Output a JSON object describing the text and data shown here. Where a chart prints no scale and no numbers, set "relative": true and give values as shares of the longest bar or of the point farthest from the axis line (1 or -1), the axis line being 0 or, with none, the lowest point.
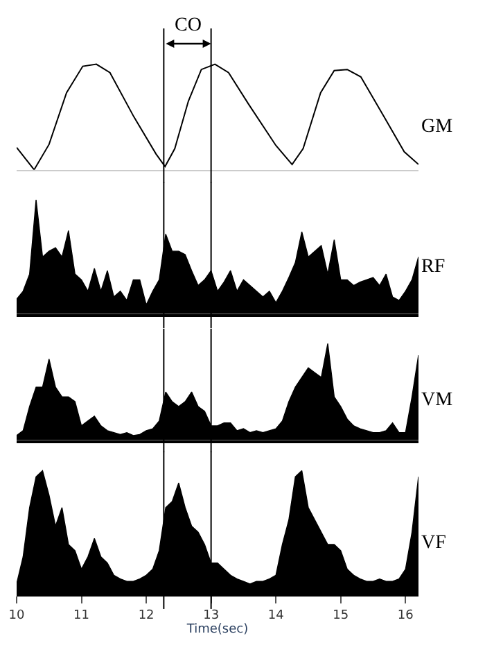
{
  "chart_data": [
    {
      "type": "line",
      "relative": true,
      "xlim": [
        10,
        16.2
      ],
      "tick_labels": false,
      "annotations": [
        "CO"
      ],
      "x": [
        10.0,
        10.27,
        10.5,
        10.77,
        11.02,
        11.23,
        11.44,
        11.81,
        12.15,
        12.29,
        12.44,
        12.65,
        12.85,
        13.06,
        13.27,
        13.58,
        14.0,
        14.25,
        14.42,
        14.69,
        14.9,
        15.1,
        15.31,
        15.67,
        15.98,
        16.2
      ],
      "series": [
        {
          "name": "GM",
          "color": "#000000",
          "values": [
            0.21,
            0,
            0.24,
            0.73,
            0.98,
            1.0,
            0.92,
            0.5,
            0.15,
            0.03,
            0.2,
            0.65,
            0.95,
            1.0,
            0.92,
            0.62,
            0.23,
            0.05,
            0.2,
            0.73,
            0.94,
            0.95,
            0.88,
            0.5,
            0.17,
            0.05
          ]
        }
      ],
      "ref_lines": [
        {
          "axis": "x",
          "value": 12.27,
          "color": "#000000"
        },
        {
          "axis": "x",
          "value": 13.0,
          "color": "#000000"
        }
      ]
    },
    {
      "type": "area",
      "relative": true,
      "xlim": [
        10,
        16.2
      ],
      "tick_labels": false,
      "x": [
        10.0,
        10.1,
        10.2,
        10.3,
        10.4,
        10.5,
        10.6,
        10.7,
        10.8,
        10.9,
        11.0,
        11.1,
        11.2,
        11.3,
        11.4,
        11.5,
        11.6,
        11.7,
        11.8,
        11.9,
        12.0,
        12.1,
        12.2,
        12.3,
        12.4,
        12.5,
        12.6,
        12.7,
        12.8,
        12.9,
        13.0,
        13.1,
        13.2,
        13.3,
        13.4,
        13.5,
        13.6,
        13.7,
        13.8,
        13.9,
        14.0,
        14.1,
        14.2,
        14.3,
        14.4,
        14.5,
        14.6,
        14.7,
        14.8,
        14.9,
        15.0,
        15.1,
        15.2,
        15.3,
        15.4,
        15.5,
        15.6,
        15.7,
        15.8,
        15.9,
        16.0,
        16.1,
        16.2
      ],
      "series": [
        {
          "name": "RF",
          "color": "#000000",
          "values": [
            0.13,
            0.2,
            0.35,
            1.0,
            0.5,
            0.55,
            0.58,
            0.5,
            0.73,
            0.35,
            0.3,
            0.2,
            0.4,
            0.2,
            0.38,
            0.15,
            0.2,
            0.12,
            0.3,
            0.3,
            0.08,
            0.2,
            0.3,
            0.7,
            0.55,
            0.55,
            0.52,
            0.38,
            0.25,
            0.3,
            0.38,
            0.2,
            0.28,
            0.38,
            0.2,
            0.3,
            0.25,
            0.2,
            0.15,
            0.2,
            0.1,
            0.2,
            0.32,
            0.45,
            0.72,
            0.5,
            0.55,
            0.6,
            0.35,
            0.65,
            0.3,
            0.3,
            0.25,
            0.28,
            0.3,
            0.32,
            0.25,
            0.35,
            0.15,
            0.12,
            0.2,
            0.3,
            0.5
          ]
        }
      ],
      "ref_lines": [
        {
          "axis": "x",
          "value": 12.27,
          "color": "#000000"
        },
        {
          "axis": "x",
          "value": 13.0,
          "color": "#000000"
        }
      ]
    },
    {
      "type": "area",
      "relative": true,
      "xlim": [
        10,
        16.2
      ],
      "tick_labels": false,
      "x": [
        10.0,
        10.1,
        10.2,
        10.3,
        10.4,
        10.5,
        10.6,
        10.7,
        10.8,
        10.9,
        11.0,
        11.1,
        11.2,
        11.3,
        11.4,
        11.5,
        11.6,
        11.7,
        11.8,
        11.9,
        12.0,
        12.1,
        12.2,
        12.3,
        12.4,
        12.5,
        12.6,
        12.7,
        12.8,
        12.9,
        13.0,
        13.1,
        13.2,
        13.3,
        13.4,
        13.5,
        13.6,
        13.7,
        13.8,
        13.9,
        14.0,
        14.1,
        14.2,
        14.3,
        14.4,
        14.5,
        14.6,
        14.7,
        14.8,
        14.9,
        15.0,
        15.1,
        15.2,
        15.3,
        15.4,
        15.5,
        15.6,
        15.7,
        15.8,
        15.9,
        16.0,
        16.1,
        16.2
      ],
      "series": [
        {
          "name": "VM",
          "color": "#000000",
          "values": [
            0.05,
            0.1,
            0.35,
            0.55,
            0.55,
            0.84,
            0.55,
            0.45,
            0.45,
            0.4,
            0.15,
            0.2,
            0.25,
            0.15,
            0.1,
            0.08,
            0.06,
            0.08,
            0.05,
            0.06,
            0.1,
            0.12,
            0.2,
            0.5,
            0.4,
            0.35,
            0.4,
            0.5,
            0.35,
            0.3,
            0.15,
            0.15,
            0.18,
            0.18,
            0.1,
            0.12,
            0.08,
            0.1,
            0.08,
            0.1,
            0.12,
            0.2,
            0.4,
            0.55,
            0.65,
            0.75,
            0.7,
            0.65,
            1.0,
            0.45,
            0.35,
            0.22,
            0.15,
            0.12,
            0.1,
            0.08,
            0.08,
            0.1,
            0.18,
            0.08,
            0.08,
            0.45,
            0.88
          ]
        }
      ],
      "ref_lines": [
        {
          "axis": "x",
          "value": 12.27,
          "color": "#000000"
        },
        {
          "axis": "x",
          "value": 13.0,
          "color": "#000000"
        }
      ]
    },
    {
      "type": "area",
      "relative": true,
      "xlim": [
        10,
        16.2
      ],
      "tick_labels": "x",
      "xlabel": "Time(sec)",
      "xticks": [
        10,
        11,
        12,
        13,
        14,
        15,
        16
      ],
      "x": [
        10.0,
        10.1,
        10.2,
        10.3,
        10.4,
        10.5,
        10.6,
        10.7,
        10.8,
        10.9,
        11.0,
        11.1,
        11.2,
        11.3,
        11.4,
        11.5,
        11.6,
        11.7,
        11.8,
        11.9,
        12.0,
        12.1,
        12.2,
        12.3,
        12.4,
        12.5,
        12.6,
        12.7,
        12.8,
        12.9,
        13.0,
        13.1,
        13.2,
        13.3,
        13.4,
        13.5,
        13.6,
        13.7,
        13.8,
        13.9,
        14.0,
        14.1,
        14.2,
        14.3,
        14.4,
        14.5,
        14.6,
        14.7,
        14.8,
        14.9,
        15.0,
        15.1,
        15.2,
        15.3,
        15.4,
        15.5,
        15.6,
        15.7,
        15.8,
        15.9,
        16.0,
        16.1,
        16.2
      ],
      "series": [
        {
          "name": "VF",
          "color": "#000000",
          "values": [
            0.08,
            0.3,
            0.7,
            0.95,
            1.0,
            0.8,
            0.55,
            0.7,
            0.4,
            0.35,
            0.2,
            0.3,
            0.45,
            0.3,
            0.25,
            0.15,
            0.12,
            0.1,
            0.1,
            0.12,
            0.15,
            0.2,
            0.35,
            0.7,
            0.75,
            0.9,
            0.7,
            0.55,
            0.5,
            0.4,
            0.25,
            0.25,
            0.2,
            0.15,
            0.12,
            0.1,
            0.08,
            0.1,
            0.1,
            0.12,
            0.15,
            0.4,
            0.6,
            0.95,
            1.0,
            0.7,
            0.6,
            0.5,
            0.4,
            0.4,
            0.35,
            0.2,
            0.15,
            0.12,
            0.1,
            0.1,
            0.12,
            0.1,
            0.1,
            0.12,
            0.2,
            0.5,
            0.95
          ]
        }
      ],
      "ref_lines": [
        {
          "axis": "x",
          "value": 12.27,
          "color": "#000000"
        },
        {
          "axis": "x",
          "value": 13.0,
          "color": "#000000"
        }
      ]
    }
  ]
}
